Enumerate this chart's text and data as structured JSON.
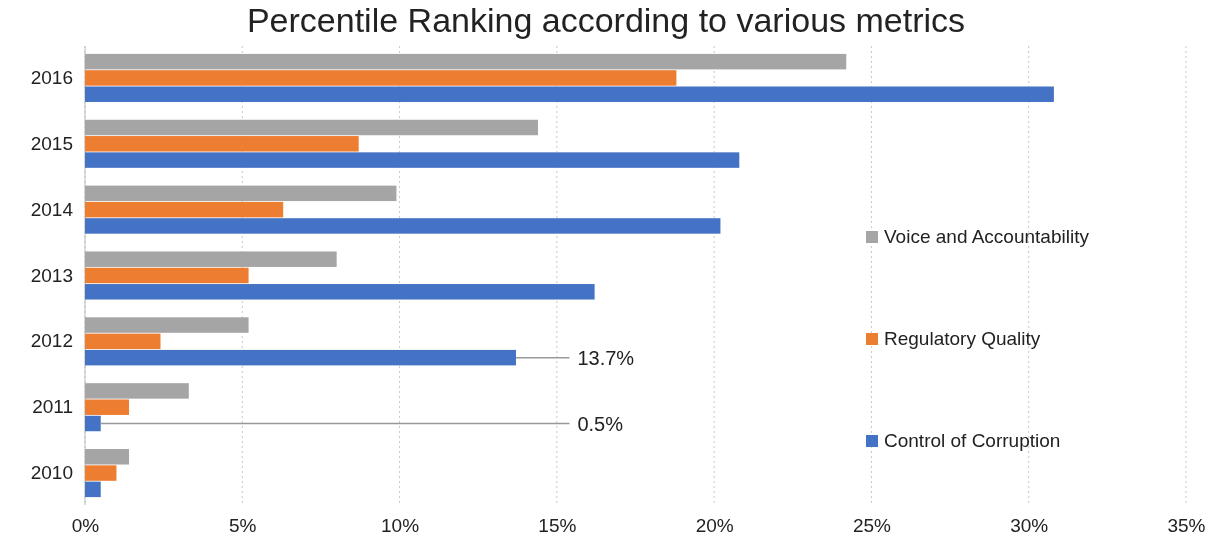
{
  "chart_data": {
    "type": "bar",
    "orientation": "horizontal",
    "title": "Percentile Ranking according to various metrics",
    "categories": [
      "2016",
      "2015",
      "2014",
      "2013",
      "2012",
      "2011",
      "2010"
    ],
    "series": [
      {
        "name": "Voice and Accountability",
        "color": "#a5a5a5",
        "values": [
          24.2,
          14.4,
          9.9,
          8.0,
          5.2,
          3.3,
          1.4
        ]
      },
      {
        "name": "Regulatory Quality",
        "color": "#ed7d31",
        "values": [
          18.8,
          8.7,
          6.3,
          5.2,
          2.4,
          1.4,
          1.0
        ]
      },
      {
        "name": "Control of Corruption",
        "color": "#4472c4",
        "values": [
          30.8,
          20.8,
          20.2,
          16.2,
          13.7,
          0.5,
          0.5
        ],
        "value_labels": [
          null,
          null,
          null,
          null,
          "13.7%",
          "0.5%",
          null
        ]
      }
    ],
    "xlim": [
      0,
      35
    ],
    "xticks": [
      {
        "value": 0,
        "label": "0%"
      },
      {
        "value": 5,
        "label": "5%"
      },
      {
        "value": 10,
        "label": "10%"
      },
      {
        "value": 15,
        "label": "15%"
      },
      {
        "value": 20,
        "label": "20%"
      },
      {
        "value": 25,
        "label": "25%"
      },
      {
        "value": 30,
        "label": "30%"
      },
      {
        "value": 35,
        "label": "35%"
      }
    ],
    "grid": "x",
    "legend": "right"
  }
}
